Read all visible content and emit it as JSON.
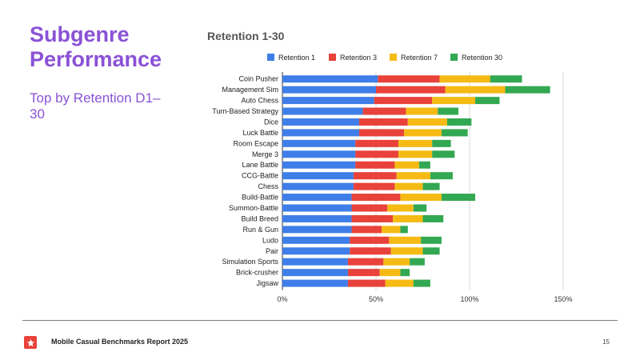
{
  "slide": {
    "title": "Subgenre Performance",
    "subtitle": "Top by Retention D1–30"
  },
  "footer": {
    "report_name": "Mobile Casual Benchmarks Report 2025",
    "page_number": "15",
    "logo_icon": "star-icon"
  },
  "colors": {
    "title": "#8a52d6",
    "retention_1": "#3f7ee8",
    "retention_3": "#e8423a",
    "retention_7": "#f5bb14",
    "retention_30": "#33a852"
  },
  "chart_data": {
    "type": "bar",
    "orientation": "horizontal",
    "stacked": true,
    "title": "Retention 1-30",
    "xlabel": "",
    "ylabel": "",
    "xlim": [
      0,
      150
    ],
    "x_ticks": [
      "0%",
      "50%",
      "100%",
      "150%"
    ],
    "x_tick_values": [
      0,
      50,
      100,
      150
    ],
    "grid": true,
    "legend_position": "top",
    "categories": [
      "Coin Pusher",
      "Management Sim",
      "Auto Chess",
      "Turn-Based Strategy",
      "Dice",
      "Luck Battle",
      "Room Escape",
      "Merge 3",
      "Lane Battle",
      "CCG-Battle",
      "Chess",
      "Build-Battle",
      "Summon-Battle",
      "Build Breed",
      "Run & Gun",
      "Ludo",
      "Pair",
      "Simulation Sports",
      "Brick-crusher",
      "Jigsaw"
    ],
    "series": [
      {
        "name": "Retention 1",
        "color": "#3f7ee8",
        "values": [
          51,
          50,
          49,
          43,
          41,
          41,
          39,
          39,
          39,
          38,
          38,
          37,
          37,
          37,
          37,
          36,
          36,
          35,
          35,
          35
        ]
      },
      {
        "name": "Retention 3",
        "color": "#e8423a",
        "values": [
          33,
          37,
          31,
          23,
          26,
          24,
          23,
          23,
          21,
          23,
          22,
          26,
          19,
          22,
          16,
          21,
          22,
          19,
          17,
          20
        ]
      },
      {
        "name": "Retention 7",
        "color": "#f5bb14",
        "values": [
          27,
          32,
          23,
          17,
          21,
          20,
          18,
          18,
          13,
          18,
          15,
          22,
          14,
          16,
          10,
          17,
          17,
          14,
          11,
          15
        ]
      },
      {
        "name": "Retention 30",
        "color": "#33a852",
        "values": [
          17,
          24,
          13,
          11,
          13,
          14,
          10,
          12,
          6,
          12,
          9,
          18,
          7,
          11,
          4,
          11,
          9,
          8,
          5,
          9
        ]
      }
    ]
  }
}
